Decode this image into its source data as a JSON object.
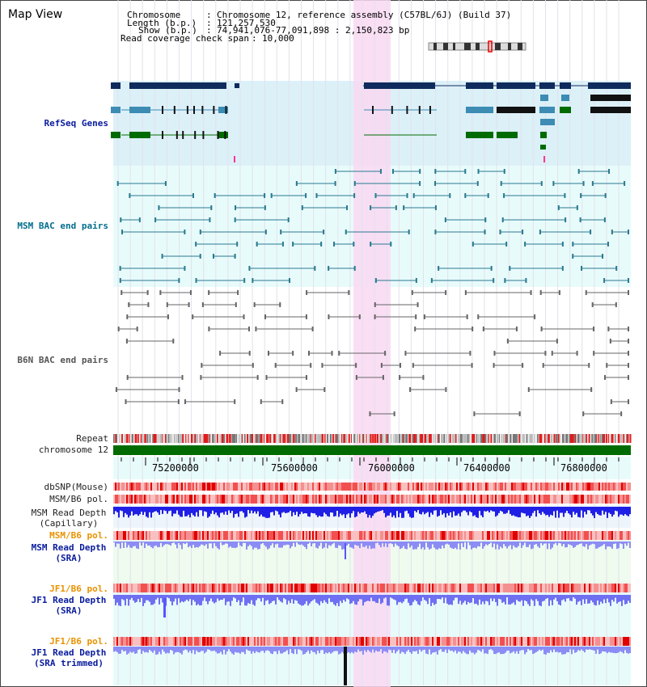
{
  "title": "Map View",
  "info": {
    "chromosome_label": "Chromosome",
    "chromosome_value": "Chromosome 12, reference assembly (C57BL/6J) (Build 37)",
    "length_label": "Length (b.p.)",
    "length_value": "121,257,530",
    "show_label": "Show (b.p.)",
    "show_value": "74,941,076-77,091,898 : 2,150,823 bp",
    "coverage_label": "Read coverage check span",
    "coverage_value": "10,000"
  },
  "tracks": {
    "refseq": "RefSeq Genes",
    "msm_bac": "MSM BAC end pairs",
    "b6n_bac": "B6N BAC end pairs",
    "repeat": "Repeat",
    "chromosome": "chromosome 12",
    "dbsnp": "dbSNP(Mouse)",
    "msm_pol1": "MSM/B6 pol.",
    "msm_depth_cap_1": "MSM Read Depth",
    "msm_depth_cap_2": "(Capillary)",
    "msm_pol2": "MSM/B6 pol.",
    "msm_depth_sra_1": "MSM Read Depth",
    "msm_depth_sra_2": "(SRA)",
    "jf1_pol1": "JF1/B6 pol.",
    "jf1_depth_sra_1": "JF1 Read Depth",
    "jf1_depth_sra_2": "(SRA)",
    "jf1_pol2": "JF1/B6 pol.",
    "jf1_depth_trim_1": "JF1 Read Depth",
    "jf1_depth_trim_2": "(SRA trimmed)"
  },
  "axis": {
    "ticks": [
      "75200000",
      "75600000",
      "76000000",
      "76400000",
      "76800000"
    ]
  },
  "colors": {
    "navy": "#0a1c9e",
    "refseq_bg": "#dcf0f8",
    "highlight": "#f9d8f2",
    "gene_dark": "#0f2a5c",
    "gene_mid": "#3c8cb4",
    "gene_green": "#006b00"
  }
}
